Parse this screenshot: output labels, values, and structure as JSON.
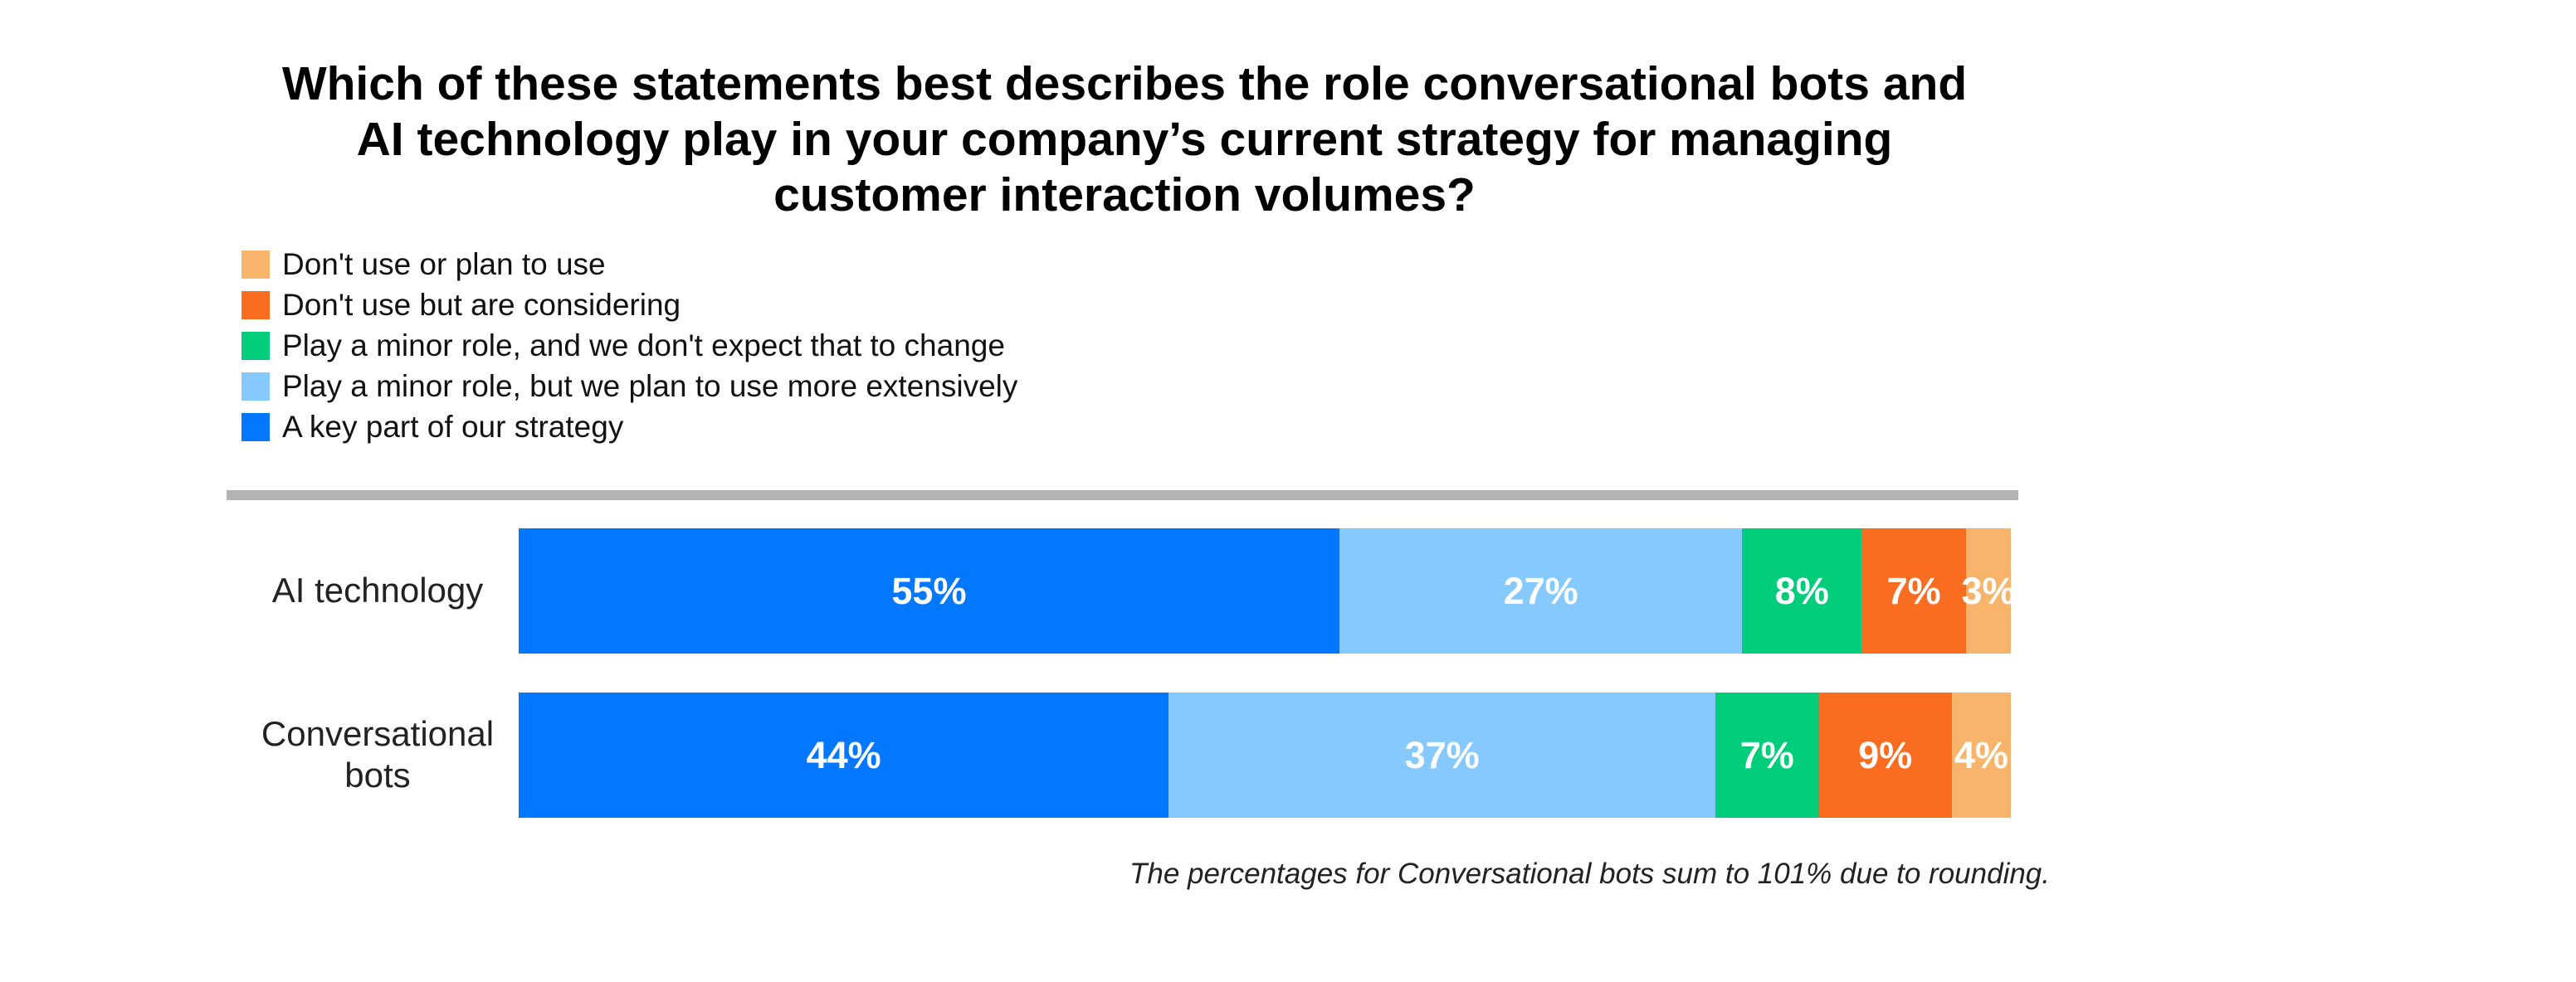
{
  "chart_data": {
    "type": "bar",
    "orientation": "horizontal",
    "stacked": true,
    "title_lines": [
      "Which of these statements best describes the role conversational bots and",
      "AI technology play in your company’s current strategy for managing",
      "customer interaction volumes?"
    ],
    "categories": [
      "AI technology",
      "Conversational bots"
    ],
    "category_label_lines": [
      [
        "AI technology"
      ],
      [
        "Conversational",
        "bots"
      ]
    ],
    "series": [
      {
        "name": "A key part of our strategy",
        "color": "#0477ff",
        "values": [
          55,
          44
        ],
        "labels": [
          "55%",
          "44%"
        ]
      },
      {
        "name": "Play a minor role, but we plan to use more extensively",
        "color": "#85c9ff",
        "values": [
          27,
          37
        ],
        "labels": [
          "27%",
          "37%"
        ]
      },
      {
        "name": "Play a minor role, and we don't expect that to change",
        "color": "#00cc7a",
        "values": [
          8,
          7
        ],
        "labels": [
          "8%",
          "7%"
        ]
      },
      {
        "name": "Don't use but are considering",
        "color": "#fa6d21",
        "values": [
          7,
          9
        ],
        "labels": [
          "7%",
          "9%"
        ]
      },
      {
        "name": "Don't use or plan to use",
        "color": "#f9b46b",
        "values": [
          3,
          4
        ],
        "labels": [
          "3%",
          "4%"
        ]
      }
    ],
    "legend_order": [
      4,
      3,
      2,
      1,
      0
    ],
    "legend_position": "top-left",
    "xlabel": "",
    "ylabel": "",
    "grid": false,
    "unit": "%",
    "footnote": "The percentages for Conversational bots sum to 101% due to rounding."
  }
}
